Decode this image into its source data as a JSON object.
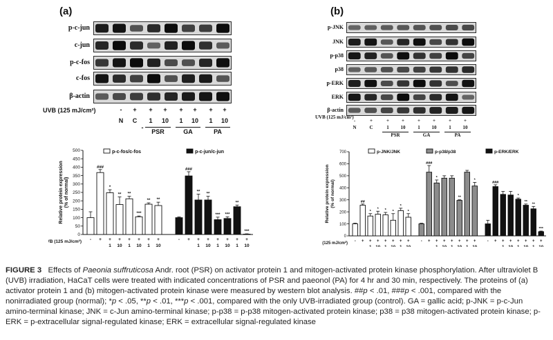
{
  "panel_a": {
    "letter": "(a)",
    "blots": [
      "p-c-jun",
      "c-jun",
      "p-c-fos",
      "c-fos",
      "β-actin"
    ],
    "uvb_label": "UVB (125 mJ/cm²)",
    "uvb_signs": [
      "-",
      "+",
      "+",
      "+",
      "+",
      "+",
      "+",
      "+"
    ],
    "lanes": [
      "N",
      "C",
      "1",
      "10",
      "1",
      "10",
      "1",
      "10"
    ],
    "lane_dash": "-",
    "groups": [
      "PSR",
      "GA",
      "PA"
    ]
  },
  "panel_b": {
    "letter": "(b)",
    "blots": [
      "p-JNK",
      "JNK",
      "p-p38",
      "p38",
      "p-ERK",
      "ERK",
      "β-actin"
    ],
    "uvb_label": "UVB (125 mJ/cm²)",
    "uvb_signs": [
      "-",
      "+",
      "+",
      "+",
      "+",
      "+",
      "+",
      "+"
    ],
    "lanes": [
      "N",
      "C",
      "1",
      "10",
      "1",
      "10",
      "1",
      "10"
    ],
    "groups": [
      "PSR",
      "GA",
      "PA"
    ]
  },
  "chart_data": [
    {
      "type": "bar",
      "ylabel": "Relative protein expression\n(% of normal)",
      "ylim": [
        0,
        500
      ],
      "yticks": [
        "0",
        "50",
        "100",
        "150",
        "200",
        "250",
        "300",
        "350",
        "400",
        "450",
        "500"
      ],
      "legend": [
        "p-c-fos/c-fos",
        "p-c-jun/c-jun"
      ],
      "uvb_label": "UVB (125 mJ/cm²)",
      "uvb_signs": [
        "-",
        "+",
        "+",
        "+",
        "+",
        "+",
        "+",
        "+"
      ],
      "dose_labels": [
        "1",
        "10",
        "1",
        "10",
        "1",
        "10"
      ],
      "groups": [
        "PSR",
        "GA",
        "PA"
      ],
      "series": [
        {
          "name": "p-c-fos/c-fos",
          "color": "#ffffff",
          "values": [
            100,
            368,
            248,
            178,
            212,
            105,
            180,
            172
          ],
          "errors": [
            35,
            18,
            18,
            45,
            15,
            5,
            8,
            20
          ],
          "marks": [
            "",
            "###",
            "*",
            "**",
            "**",
            "***",
            "**",
            "**"
          ]
        },
        {
          "name": "p-c-jun/c-jun",
          "color": "#111111",
          "values": [
            100,
            348,
            205,
            205,
            88,
            95,
            165,
            2
          ],
          "errors": [
            4,
            25,
            35,
            22,
            15,
            10,
            10,
            2
          ],
          "marks": [
            "",
            "###",
            "**",
            "**",
            "***",
            "***",
            "**",
            "***"
          ]
        }
      ]
    },
    {
      "type": "bar",
      "ylabel": "Relative protein expression\n(% of normal)",
      "ylim": [
        0,
        700
      ],
      "yticks": [
        "0",
        "100",
        "200",
        "300",
        "400",
        "500",
        "600",
        "700"
      ],
      "legend": [
        "p-JNK/JNK",
        "p-p38/p38",
        "p-ERK/ERK"
      ],
      "uvb_label": "UVB (125 mJ/cm²)",
      "uvb_signs": [
        "-",
        "+",
        "+",
        "+",
        "+",
        "+",
        "+",
        "+"
      ],
      "dose_labels": [
        "1",
        "10",
        "1",
        "10",
        "1",
        "10"
      ],
      "groups": [
        "PSR",
        "GA",
        "PA"
      ],
      "series": [
        {
          "name": "p-JNK/JNK",
          "color": "#ffffff",
          "values": [
            100,
            255,
            165,
            180,
            175,
            130,
            210,
            155
          ],
          "errors": [
            5,
            10,
            20,
            25,
            20,
            55,
            20,
            30
          ],
          "marks": [
            "",
            "##",
            "*",
            "*",
            "*",
            "*",
            "*",
            "*"
          ]
        },
        {
          "name": "p-p38/p38",
          "color": "#8c8c8c",
          "values": [
            100,
            530,
            440,
            480,
            480,
            295,
            530,
            415
          ],
          "errors": [
            5,
            55,
            25,
            20,
            20,
            5,
            15,
            30
          ],
          "marks": [
            "",
            "###",
            "*",
            "",
            "",
            "**",
            "",
            "*"
          ]
        },
        {
          "name": "p-ERK/ERK",
          "color": "#111111",
          "values": [
            100,
            410,
            345,
            340,
            305,
            255,
            225,
            35
          ],
          "errors": [
            30,
            15,
            25,
            30,
            10,
            10,
            20,
            5
          ],
          "marks": [
            "",
            "###",
            "",
            "",
            "*",
            "**",
            "**",
            "***"
          ]
        }
      ]
    }
  ],
  "caption": {
    "label": "FIGURE 3",
    "seg1": "Effects of ",
    "species": "Paeonia suffruticosa",
    "seg2": " Andr. root (PSR) on activator protein 1 and mitogen-activated protein kinase phosphorylation. After ultraviolet B (UVB) irradiation, HaCaT cells were treated with indicated concentrations of PSR and paeonol (PA) for 4 hr and 30 min, respectively. The proteins of (a) activator protein 1 and (b) mitogen-activated protein kinase were measured by western blot analysis. ##",
    "p1": "p",
    "seg3": " < .01, ###",
    "p2": "p",
    "seg4": " < .001, compared with the nonirradiated group (normal); *",
    "p3": "p",
    "seg5": " < .05, **",
    "p4": "p",
    "seg6": " < .01, ***",
    "p5": "p",
    "seg7": " < .001, compared with the only UVB-irradiated group (control). GA = gallic acid; p-JNK = p-c-Jun amino-terminal kinase; JNK = c-Jun amino-terminal kinase; p-p38 = p-p38 mitogen-activated protein kinase; p38 = p38 mitogen-activated protein kinase; p-ERK = p-extracellular signal-regulated kinase; ERK = extracellular signal-regulated kinase"
  }
}
